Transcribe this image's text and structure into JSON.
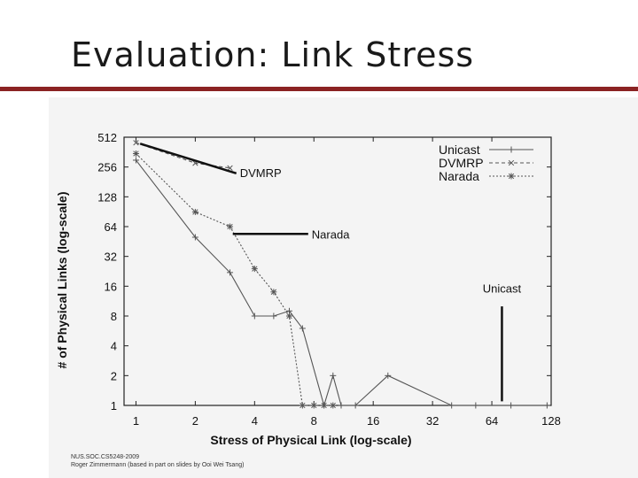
{
  "slide": {
    "title": "Evaluation: Link Stress",
    "footer_line1": "NUS.SOC.CS5248-2009",
    "footer_line2": "Roger Zimmermann (based in part on slides by Ooi Wei Tsang)"
  },
  "colors": {
    "title_rule": "#8b2323",
    "panel_bg": "#f4f4f4",
    "series_stroke": "#555555"
  },
  "chart_data": {
    "type": "line",
    "title": "",
    "xlabel": "Stress of Physical Link (log-scale)",
    "ylabel": "# of Physical Links (log-scale)",
    "x_scale": "log2",
    "y_scale": "log2",
    "xlim": [
      0.87,
      128
    ],
    "ylim": [
      1,
      512
    ],
    "xticks": [
      1,
      2,
      4,
      8,
      16,
      32,
      64,
      128
    ],
    "xtick_labels": [
      "1",
      "2",
      "4",
      "8",
      "16",
      "32",
      "64",
      "128"
    ],
    "yticks": [
      1,
      2,
      4,
      8,
      16,
      32,
      64,
      128,
      256,
      512
    ],
    "ytick_labels": [
      "1",
      "2",
      "4",
      "8",
      "16",
      "32",
      "64",
      "128",
      "256",
      "512"
    ],
    "legend_position": "top-right",
    "grid": false,
    "series": [
      {
        "name": "Unicast",
        "style": "solid",
        "marker": "+",
        "points": [
          [
            1,
            300
          ],
          [
            2,
            50
          ],
          [
            3,
            22
          ],
          [
            4,
            8
          ],
          [
            5,
            8
          ],
          [
            6,
            9
          ],
          [
            7,
            6
          ],
          [
            9,
            1
          ],
          [
            10,
            2
          ],
          [
            11,
            1
          ],
          [
            13,
            1
          ],
          [
            19,
            2
          ],
          [
            40,
            1
          ],
          [
            53,
            1
          ],
          [
            80,
            1
          ],
          [
            122,
            1
          ]
        ]
      },
      {
        "name": "DVMRP",
        "style": "dashed",
        "marker": "x",
        "points": [
          [
            1,
            450
          ],
          [
            2,
            280
          ],
          [
            3,
            250
          ]
        ]
      },
      {
        "name": "Narada",
        "style": "dotted",
        "marker": "*",
        "points": [
          [
            1,
            350
          ],
          [
            2,
            90
          ],
          [
            3,
            64
          ],
          [
            4,
            24
          ],
          [
            5,
            14
          ],
          [
            6,
            8
          ],
          [
            7,
            1
          ],
          [
            8,
            1
          ],
          [
            9,
            1
          ],
          [
            10,
            1
          ]
        ]
      }
    ],
    "annotations": [
      {
        "text": "DVMRP",
        "series": "DVMRP",
        "at": [
          3,
          250
        ],
        "label_at": [
          3.1,
          250
        ]
      },
      {
        "text": "Narada",
        "series": "Narada",
        "from": [
          3.1,
          54
        ],
        "label_at": [
          7.8,
          54
        ]
      },
      {
        "text": "Unicast",
        "series": "Unicast",
        "from": [
          72,
          1.1
        ],
        "to": [
          72,
          10
        ],
        "label_at": [
          72,
          15
        ]
      }
    ]
  }
}
